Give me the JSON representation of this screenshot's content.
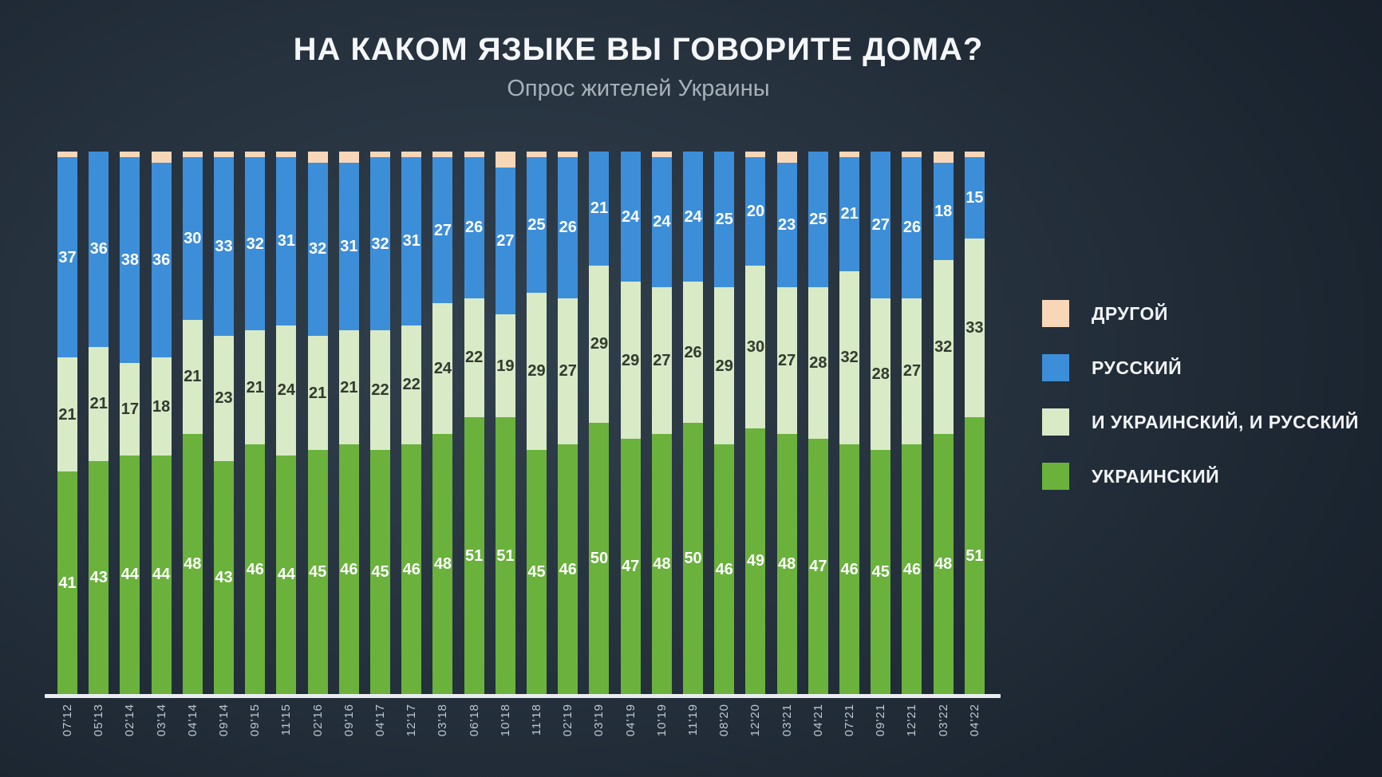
{
  "title": "НА КАКОМ ЯЗЫКЕ ВЫ ГОВОРИТЕ ДОМА?",
  "subtitle": "Опрос жителей Украины",
  "legend": [
    {
      "label": "ДРУГОЙ",
      "color": "#f8d7b8"
    },
    {
      "label": "РУССКИЙ",
      "color": "#3d8ed9"
    },
    {
      "label": "И УКРАИНСКИЙ, И РУССКИЙ",
      "color": "#d9eac7"
    },
    {
      "label": "УКРАИНСКИЙ",
      "color": "#6ab23c"
    }
  ],
  "chart_data": {
    "type": "bar",
    "stacked": true,
    "value_unit": "percent",
    "ylim": [
      0,
      100
    ],
    "grid": false,
    "legend_position": "right",
    "categories": [
      "07'12",
      "05'13",
      "02'14",
      "03'14",
      "04'14",
      "09'14",
      "09'15",
      "11'15",
      "02'16",
      "09'16",
      "04'17",
      "12'17",
      "03'18",
      "06'18",
      "10'18",
      "11'18",
      "02'19",
      "03'19",
      "04'19",
      "10'19",
      "11'19",
      "08'20",
      "12'20",
      "03'21",
      "04'21",
      "07'21",
      "09'21",
      "12'21",
      "03'22",
      "04'22"
    ],
    "series": [
      {
        "name": "УКРАИНСКИЙ",
        "color": "#6ab23c",
        "label_color": "#ffffff",
        "show_labels": true,
        "values": [
          41,
          43,
          44,
          44,
          48,
          43,
          46,
          44,
          45,
          46,
          45,
          46,
          48,
          51,
          51,
          45,
          46,
          50,
          47,
          48,
          50,
          46,
          49,
          48,
          47,
          46,
          45,
          46,
          48,
          51
        ]
      },
      {
        "name": "И УКРАИНСКИЙ, И РУССКИЙ",
        "color": "#d9eac7",
        "label_color": "#333b30",
        "show_labels": true,
        "values": [
          21,
          21,
          17,
          18,
          21,
          23,
          21,
          24,
          21,
          21,
          22,
          22,
          24,
          22,
          19,
          29,
          27,
          29,
          29,
          27,
          26,
          29,
          30,
          27,
          28,
          32,
          28,
          27,
          32,
          33
        ]
      },
      {
        "name": "РУССКИЙ",
        "color": "#3d8ed9",
        "label_color": "#ffffff",
        "show_labels": true,
        "values": [
          37,
          36,
          38,
          36,
          30,
          33,
          32,
          31,
          32,
          31,
          32,
          31,
          27,
          26,
          27,
          25,
          26,
          21,
          24,
          24,
          24,
          25,
          20,
          23,
          25,
          21,
          27,
          26,
          18,
          15
        ]
      },
      {
        "name": "ДРУГОЙ",
        "color": "#f8d7b8",
        "label_color": null,
        "show_labels": false,
        "values": [
          1,
          0,
          1,
          2,
          1,
          1,
          1,
          1,
          2,
          2,
          1,
          1,
          1,
          1,
          3,
          1,
          1,
          0,
          0,
          1,
          0,
          0,
          1,
          2,
          0,
          1,
          0,
          1,
          2,
          1
        ]
      }
    ]
  }
}
